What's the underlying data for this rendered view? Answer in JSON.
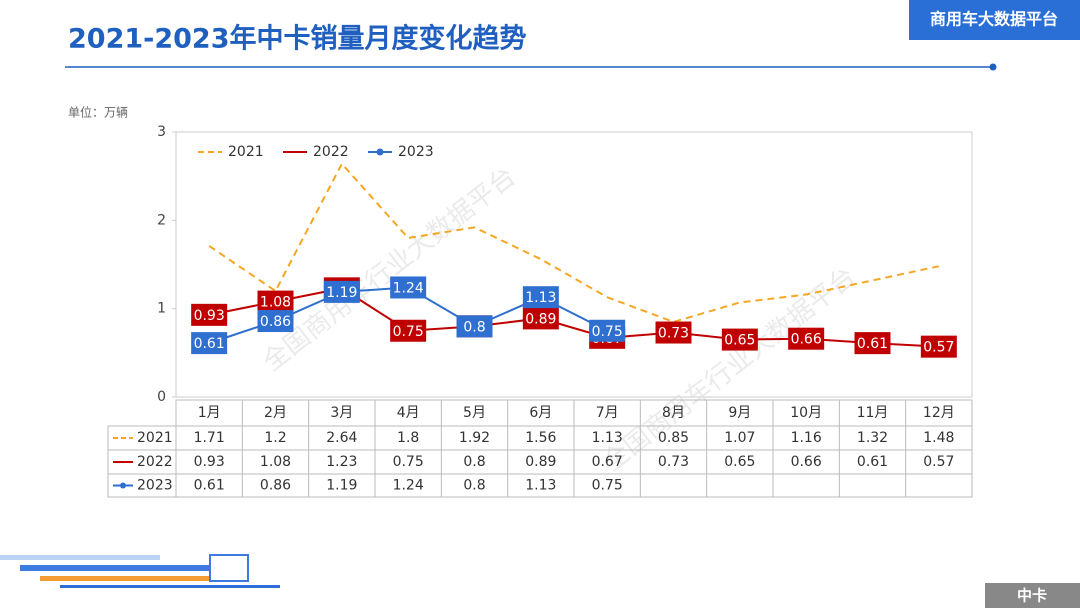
{
  "header": {
    "title": "2021-2023年中卡销量月度变化趋势",
    "badge": "商用车大数据平台",
    "footer_tag": "中卡",
    "watermark": "全国商用车行业大数据平台"
  },
  "chart_data": {
    "type": "line",
    "unit_label": "单位：万辆",
    "categories": [
      "1月",
      "2月",
      "3月",
      "4月",
      "5月",
      "6月",
      "7月",
      "8月",
      "9月",
      "10月",
      "11月",
      "12月"
    ],
    "series": [
      {
        "name": "2021",
        "color": "#f5a623",
        "dashed": true,
        "data_labels": false,
        "values": [
          1.71,
          1.2,
          2.64,
          1.8,
          1.92,
          1.56,
          1.13,
          0.85,
          1.07,
          1.16,
          1.32,
          1.48
        ]
      },
      {
        "name": "2022",
        "color": "#c00000",
        "dashed": false,
        "data_labels": true,
        "values": [
          0.93,
          1.08,
          1.23,
          0.75,
          0.8,
          0.89,
          0.67,
          0.73,
          0.65,
          0.66,
          0.61,
          0.57
        ]
      },
      {
        "name": "2023",
        "color": "#2e6fcf",
        "dashed": false,
        "markers": true,
        "data_labels": true,
        "values": [
          0.61,
          0.86,
          1.19,
          1.24,
          0.8,
          1.13,
          0.75,
          null,
          null,
          null,
          null,
          null
        ]
      }
    ],
    "ylim": [
      0,
      3
    ],
    "yticks": [
      0,
      1,
      2,
      3
    ],
    "legend": "top-left",
    "data_table": true
  }
}
